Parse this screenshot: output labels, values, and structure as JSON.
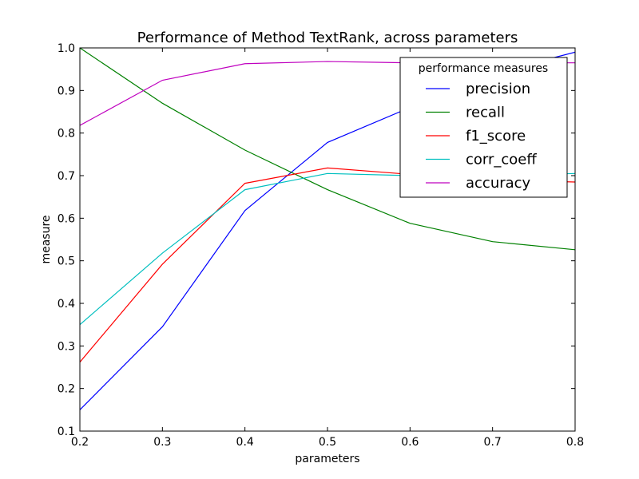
{
  "chart_data": {
    "type": "line",
    "title": "Performance of Method TextRank, across parameters",
    "xlabel": "parameters",
    "ylabel": "measure",
    "xlim": [
      0.2,
      0.8
    ],
    "ylim": [
      0.1,
      1.0
    ],
    "xticks": [
      "0.2",
      "0.3",
      "0.4",
      "0.5",
      "0.6",
      "0.7",
      "0.8"
    ],
    "yticks": [
      "0.1",
      "0.2",
      "0.3",
      "0.4",
      "0.5",
      "0.6",
      "0.7",
      "0.8",
      "0.9",
      "1.0"
    ],
    "grid": false,
    "x": [
      0.2,
      0.3,
      0.4,
      0.5,
      0.6,
      0.7,
      0.8
    ],
    "series": [
      {
        "name": "precision",
        "color": "#0000ff",
        "values": [
          0.15,
          0.345,
          0.618,
          0.778,
          0.86,
          0.94,
          0.99
        ]
      },
      {
        "name": "recall",
        "color": "#008000",
        "values": [
          1.0,
          0.87,
          0.76,
          0.667,
          0.588,
          0.545,
          0.526
        ]
      },
      {
        "name": "f1_score",
        "color": "#ff0000",
        "values": [
          0.262,
          0.492,
          0.682,
          0.718,
          0.703,
          0.69,
          0.685
        ]
      },
      {
        "name": "corr_coeff",
        "color": "#00bfbf",
        "values": [
          0.35,
          0.518,
          0.667,
          0.705,
          0.7,
          0.7,
          0.705
        ]
      },
      {
        "name": "accuracy",
        "color": "#bf00bf",
        "values": [
          0.818,
          0.924,
          0.963,
          0.968,
          0.965,
          0.965,
          0.965
        ]
      }
    ],
    "legend": {
      "title": "performance measures",
      "placement": "upper-right"
    }
  }
}
